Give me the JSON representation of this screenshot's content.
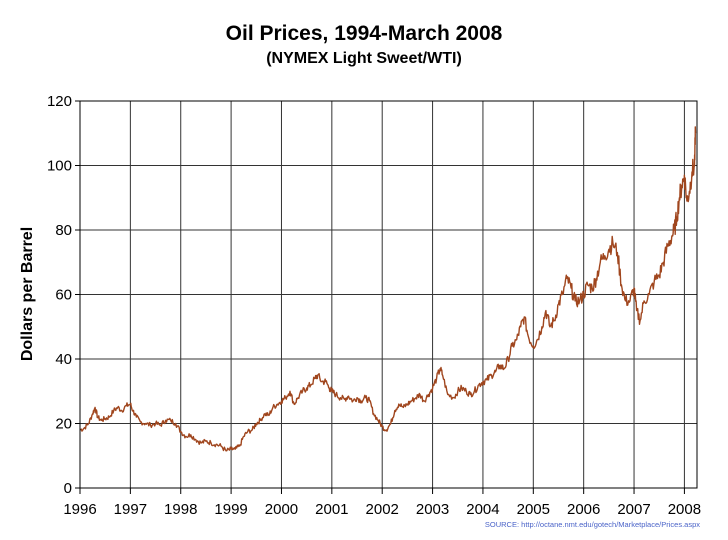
{
  "chart_data": {
    "type": "line",
    "title": "Oil Prices, 1994-March 2008",
    "subtitle": "(NYMEX Light Sweet/WTI)",
    "xlabel": "",
    "ylabel": "Dollars per Barrel",
    "xlim": [
      1996.0,
      2008.25
    ],
    "ylim": [
      0,
      120
    ],
    "x_ticks": [
      "1996",
      "1997",
      "1998",
      "1999",
      "2000",
      "2001",
      "2002",
      "2003",
      "2004",
      "2005",
      "2006",
      "2007",
      "2008"
    ],
    "y_ticks": [
      "0",
      "20",
      "40",
      "60",
      "80",
      "100",
      "120"
    ],
    "grid": true,
    "legend": "none",
    "source": "SOURCE: http://octane.nmt.edu/gotech/Marketplace/Prices.aspx",
    "colors": {
      "line": "#a0461e",
      "grid": "#333333",
      "axis": "#000000"
    },
    "series": [
      {
        "x": [
          1996.0,
          1996.08,
          1996.17,
          1996.25,
          1996.3,
          1996.35,
          1996.42,
          1996.5,
          1996.58,
          1996.67,
          1996.75,
          1996.83,
          1996.92,
          1997.0,
          1997.05,
          1997.12,
          1997.2,
          1997.3,
          1997.4,
          1997.5,
          1997.6,
          1997.7,
          1997.8,
          1997.9,
          1998.0,
          1998.1,
          1998.2,
          1998.3,
          1998.4,
          1998.5,
          1998.6,
          1998.7,
          1998.8,
          1998.9,
          1999.0,
          1999.08,
          1999.17,
          1999.25,
          1999.33,
          1999.42,
          1999.5,
          1999.58,
          1999.67,
          1999.75,
          1999.83,
          1999.92,
          2000.0,
          2000.08,
          2000.17,
          2000.25,
          2000.33,
          2000.42,
          2000.5,
          2000.58,
          2000.67,
          2000.72,
          2000.8,
          2000.88,
          2000.95,
          2001.0,
          2001.08,
          2001.17,
          2001.25,
          2001.33,
          2001.42,
          2001.5,
          2001.58,
          2001.67,
          2001.75,
          2001.83,
          2001.92,
          2002.0,
          2002.08,
          2002.17,
          2002.25,
          2002.33,
          2002.42,
          2002.5,
          2002.58,
          2002.67,
          2002.75,
          2002.83,
          2002.92,
          2003.0,
          2003.08,
          2003.15,
          2003.2,
          2003.3,
          2003.42,
          2003.5,
          2003.58,
          2003.67,
          2003.75,
          2003.83,
          2003.92,
          2004.0,
          2004.08,
          2004.17,
          2004.25,
          2004.33,
          2004.42,
          2004.5,
          2004.58,
          2004.67,
          2004.75,
          2004.82,
          2004.9,
          2005.0,
          2005.08,
          2005.17,
          2005.25,
          2005.33,
          2005.42,
          2005.5,
          2005.58,
          2005.67,
          2005.75,
          2005.83,
          2005.92,
          2006.0,
          2006.08,
          2006.17,
          2006.25,
          2006.33,
          2006.42,
          2006.5,
          2006.58,
          2006.67,
          2006.75,
          2006.83,
          2006.92,
          2007.0,
          2007.05,
          2007.12,
          2007.2,
          2007.3,
          2007.4,
          2007.5,
          2007.58,
          2007.67,
          2007.75,
          2007.8,
          2007.85,
          2007.9,
          2007.95,
          2008.0,
          2008.05,
          2008.1,
          2008.15,
          2008.2,
          2008.22
        ],
        "y": [
          18,
          18.5,
          20,
          23,
          25,
          22,
          21,
          21.5,
          22,
          24,
          25,
          24,
          25.5,
          26,
          24,
          22,
          20.5,
          20,
          19.5,
          20,
          19.5,
          21,
          21,
          20,
          17.5,
          16,
          16.5,
          15,
          14,
          14.5,
          14,
          13.5,
          13,
          11.5,
          12,
          12,
          13,
          16,
          17.5,
          18,
          20,
          21,
          23,
          22.5,
          25,
          26,
          27,
          28,
          30,
          26,
          28,
          30,
          31,
          32,
          34,
          35,
          33,
          33,
          31,
          30,
          29,
          28,
          27.5,
          28.5,
          27,
          28,
          27,
          28,
          27,
          23,
          21,
          19,
          18,
          20,
          24,
          26,
          25,
          26,
          27,
          28,
          29,
          27,
          29,
          31,
          34,
          37,
          35,
          29,
          28,
          30,
          31,
          30,
          29,
          30,
          32,
          33,
          33.5,
          35,
          36,
          38,
          37,
          40,
          44,
          46,
          50,
          53,
          47,
          44,
          46,
          50,
          55,
          50,
          52,
          57,
          60,
          65,
          62,
          58,
          58,
          60,
          63,
          62,
          65,
          70,
          72,
          74,
          76,
          73,
          63,
          58,
          58,
          62,
          55,
          52,
          58,
          60,
          64,
          66,
          70,
          75,
          78,
          80,
          84,
          90,
          94,
          97,
          89,
          92,
          98,
          100,
          110
        ]
      }
    ]
  }
}
